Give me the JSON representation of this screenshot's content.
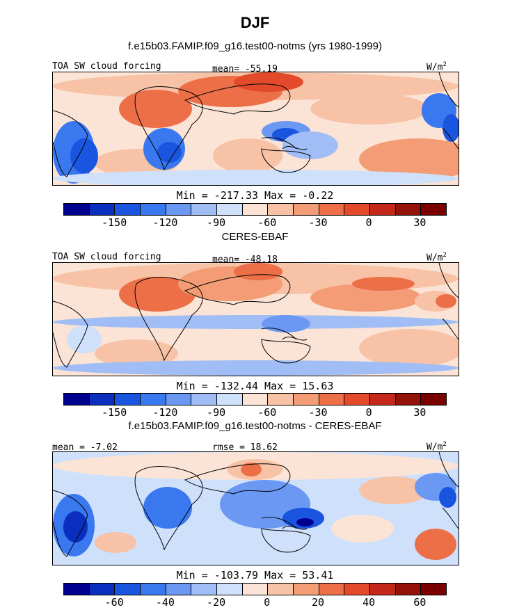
{
  "title": "DJF",
  "colors": {
    "scale": [
      "#00008f",
      "#0a2fbf",
      "#1a55e0",
      "#3a78ef",
      "#6a98f2",
      "#a0bef5",
      "#cfe0fb",
      "#fbe4d6",
      "#f7c2a6",
      "#f39c76",
      "#ec6f48",
      "#e24a2a",
      "#c4281a",
      "#93120a",
      "#7a0000"
    ],
    "land": "#000000"
  },
  "chart_data": [
    {
      "type": "heatmap",
      "subtitle": "f.e15b03.FAMIP.f09_g16.test00-notms (yrs 1980-1999)",
      "label_left": "TOA SW cloud forcing",
      "label_mid": "mean=  -55.19",
      "units": "W/m",
      "units_sup": "2",
      "minmax": "Min = -217.33 Max =  -0.22",
      "colorbar_ticks": [
        "-150",
        "-120",
        "-90",
        "-60",
        "-30",
        "0",
        "30"
      ],
      "tick_positions": [
        2,
        4,
        6,
        8,
        10,
        12,
        14
      ]
    },
    {
      "type": "heatmap",
      "subtitle": "CERES-EBAF",
      "label_left": "TOA SW cloud forcing",
      "label_mid": "mean=  -48.18",
      "units": "W/m",
      "units_sup": "2",
      "minmax": "Min = -132.44 Max =  15.63",
      "colorbar_ticks": [
        "-150",
        "-120",
        "-90",
        "-60",
        "-30",
        "0",
        "30"
      ],
      "tick_positions": [
        2,
        4,
        6,
        8,
        10,
        12,
        14
      ]
    },
    {
      "type": "heatmap",
      "subtitle": "f.e15b03.FAMIP.f09_g16.test00-notms - CERES-EBAF",
      "label_left": "mean =  -7.02",
      "label_mid": "rmse =  18.62",
      "units": "W/m",
      "units_sup": "2",
      "minmax": "Min = -103.79 Max =  53.41",
      "colorbar_ticks": [
        "-60",
        "-40",
        "-20",
        "0",
        "20",
        "40",
        "60"
      ],
      "tick_positions": [
        2,
        4,
        6,
        8,
        10,
        12,
        14
      ]
    }
  ]
}
